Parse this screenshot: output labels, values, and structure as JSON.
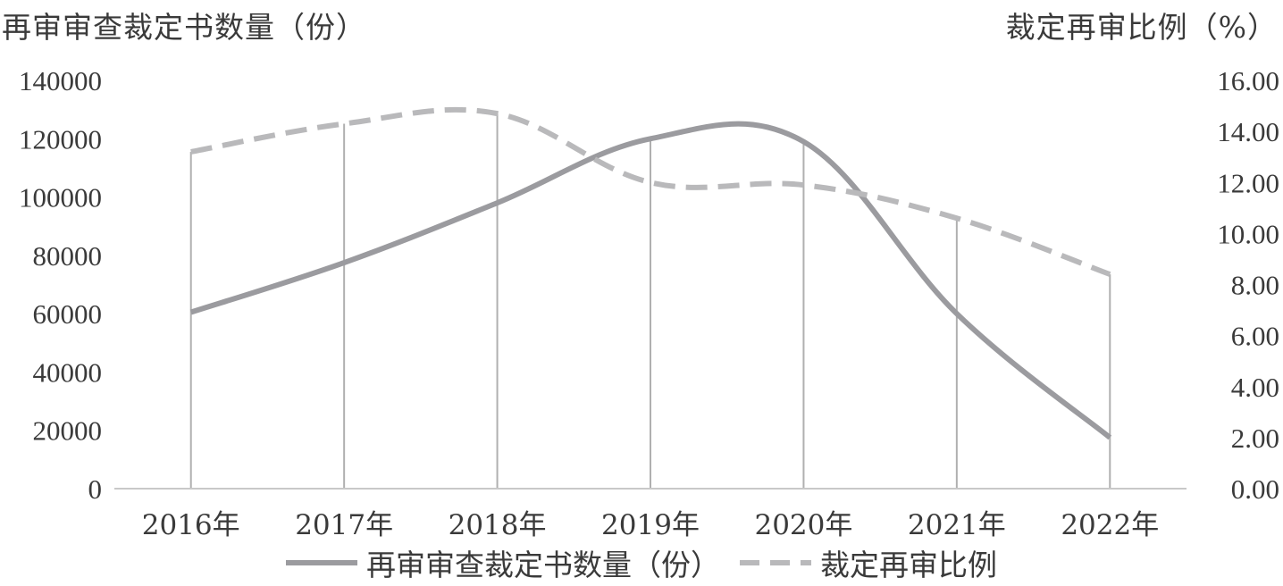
{
  "chart_data": {
    "type": "line",
    "categories": [
      "2016年",
      "2017年",
      "2018年",
      "2019年",
      "2020年",
      "2021年",
      "2022年"
    ],
    "series": [
      {
        "name": "再审审查裁定书数量（份）",
        "axis": "left",
        "style": "solid",
        "color": "#9b9b9f",
        "values": [
          60500,
          77500,
          98000,
          120000,
          119000,
          60000,
          17500
        ]
      },
      {
        "name": "裁定再审比例",
        "axis": "right",
        "style": "dashed",
        "color": "#b9b9bb",
        "values": [
          13.2,
          14.3,
          14.7,
          12.0,
          11.9,
          10.6,
          8.4
        ]
      }
    ],
    "ylabel_left": "再审审查裁定书数量（份）",
    "ylabel_right": "裁定再审比例（%）",
    "ylim_left": [
      0,
      140000
    ],
    "ylim_right": [
      0,
      16
    ],
    "yticks_left": [
      "0",
      "20000",
      "40000",
      "60000",
      "80000",
      "100000",
      "120000",
      "140000"
    ],
    "yticks_right": [
      "0.00",
      "2.00",
      "4.00",
      "6.00",
      "8.00",
      "10.00",
      "12.00",
      "14.00",
      "16.00"
    ],
    "vertical_drop_lines": true,
    "legend_position": "bottom"
  }
}
